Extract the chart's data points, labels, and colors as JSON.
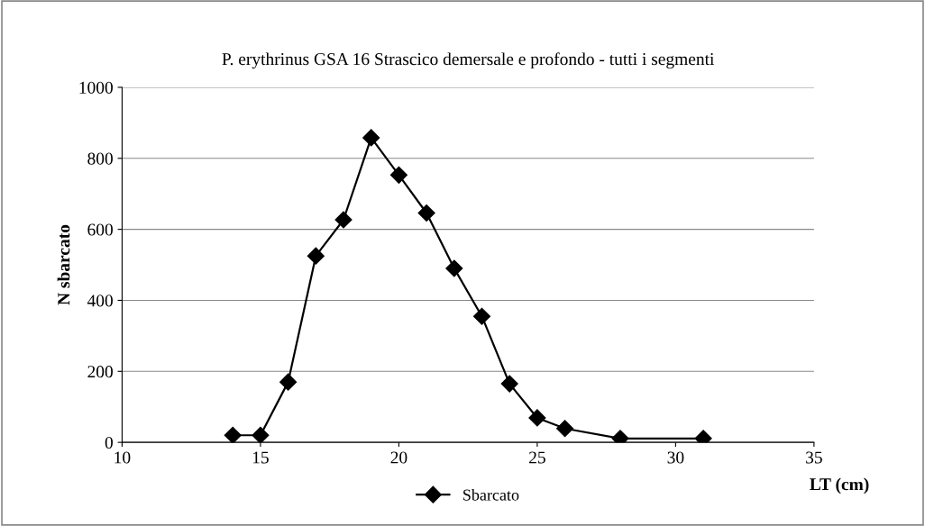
{
  "chart_data": {
    "type": "line",
    "title": "P. erythrinus GSA 16 Strascico demersale e profondo - tutti i segmenti",
    "xlabel": "LT (cm)",
    "ylabel": "N sbarcato",
    "x": [
      14,
      15,
      16,
      17,
      18,
      19,
      20,
      21,
      22,
      23,
      24,
      25,
      26,
      28,
      31
    ],
    "series": [
      {
        "name": "Sbarcato",
        "color": "#000000",
        "values": [
          20,
          20,
          170,
          525,
          627,
          858,
          753,
          646,
          490,
          355,
          165,
          69,
          39,
          11,
          11
        ]
      }
    ],
    "xlim": [
      10,
      35
    ],
    "xticks": [
      10,
      15,
      20,
      25,
      30,
      35
    ],
    "ylim": [
      0,
      1000
    ],
    "yticks": [
      0,
      200,
      400,
      600,
      800,
      1000
    ],
    "grid": "y",
    "legend": "bottom",
    "marker": "diamond",
    "line_style": "solid"
  }
}
